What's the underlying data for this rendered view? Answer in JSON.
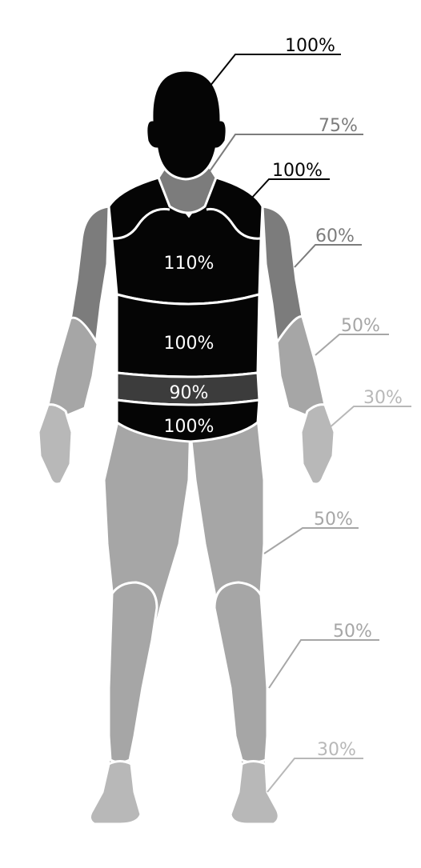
{
  "colors": {
    "black": "#050505",
    "dark_gray": "#3c3c3c",
    "mid_gray": "#7c7c7c",
    "light_gray": "#a6a6a6",
    "paler_gray": "#b8b8b8",
    "outline": "#ffffff"
  },
  "labels": {
    "head": "100%",
    "neck": "75%",
    "shoulder": "100%",
    "upper_arm": "60%",
    "forearm": "50%",
    "hand": "30%",
    "thigh": "50%",
    "shin": "50%",
    "foot": "30%"
  },
  "torso": {
    "chest": "110%",
    "abdomen": "100%",
    "waist_band": "90%",
    "hips": "100%"
  }
}
